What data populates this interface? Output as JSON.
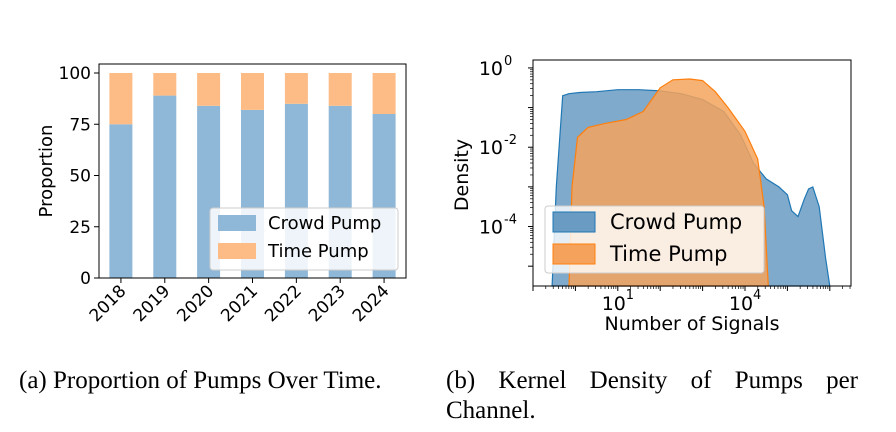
{
  "chart_data": [
    {
      "type": "bar",
      "stacked": true,
      "title": "",
      "xlabel": "",
      "ylabel": "Proportion",
      "categories": [
        "2018",
        "2019",
        "2020",
        "2021",
        "2022",
        "2023",
        "2024"
      ],
      "series": [
        {
          "name": "Crowd Pump",
          "color": "#8fb7d7",
          "values": [
            75,
            89,
            84,
            82,
            85,
            84,
            80
          ]
        },
        {
          "name": "Time Pump",
          "color": "#fdbc85",
          "values": [
            25,
            11,
            16,
            18,
            15,
            16,
            20
          ]
        }
      ],
      "yticks": [
        "0",
        "25",
        "50",
        "75",
        "100"
      ],
      "ylim": [
        0,
        100
      ],
      "legend": {
        "placement": "bottom-right",
        "entries": [
          "Crowd Pump",
          "Time Pump"
        ]
      },
      "caption": "(a) Proportion of Pumps Over Time."
    },
    {
      "type": "area",
      "title": "",
      "xlabel": "Number of Signals",
      "ylabel": "Density",
      "xscale": "log",
      "yscale": "log",
      "xlim_log10": [
        -1.0,
        6.5
      ],
      "ylim_log10": [
        -5.5,
        0.2
      ],
      "xticks": [
        {
          "base": "10",
          "exp": "1",
          "log10": 1
        },
        {
          "base": "10",
          "exp": "4",
          "log10": 4
        }
      ],
      "yticks": [
        {
          "base": "10",
          "exp": "0",
          "log10": 0
        },
        {
          "base": "10",
          "exp": "-2",
          "log10": -2
        },
        {
          "base": "10",
          "exp": "-4",
          "log10": -4
        }
      ],
      "series": [
        {
          "name": "Crowd Pump",
          "fill": "#6a9bc3",
          "stroke": "#1f77b4",
          "points": [
            [
              -0.55,
              -5.5
            ],
            [
              -0.45,
              -3.0
            ],
            [
              -0.3,
              -0.7
            ],
            [
              -0.15,
              -0.65
            ],
            [
              0.1,
              -0.62
            ],
            [
              0.5,
              -0.6
            ],
            [
              1.0,
              -0.55
            ],
            [
              1.5,
              -0.55
            ],
            [
              2.0,
              -0.58
            ],
            [
              2.5,
              -0.65
            ],
            [
              3.0,
              -0.8
            ],
            [
              3.5,
              -1.1
            ],
            [
              3.9,
              -1.7
            ],
            [
              4.2,
              -2.4
            ],
            [
              4.5,
              -2.8
            ],
            [
              4.8,
              -3.0
            ],
            [
              5.0,
              -3.2
            ],
            [
              5.1,
              -3.6
            ],
            [
              5.25,
              -3.75
            ],
            [
              5.4,
              -3.3
            ],
            [
              5.5,
              -3.05
            ],
            [
              5.6,
              -3.0
            ],
            [
              5.75,
              -3.5
            ],
            [
              5.9,
              -4.8
            ],
            [
              6.0,
              -5.5
            ]
          ]
        },
        {
          "name": "Time Pump",
          "fill": "#f5a35c",
          "stroke": "#ff7f0e",
          "points": [
            [
              -0.15,
              -5.5
            ],
            [
              -0.08,
              -3.0
            ],
            [
              0.05,
              -1.75
            ],
            [
              0.3,
              -1.5
            ],
            [
              0.7,
              -1.4
            ],
            [
              1.2,
              -1.3
            ],
            [
              1.6,
              -1.1
            ],
            [
              2.0,
              -0.5
            ],
            [
              2.3,
              -0.3
            ],
            [
              2.7,
              -0.28
            ],
            [
              3.0,
              -0.32
            ],
            [
              3.3,
              -0.6
            ],
            [
              3.6,
              -1.0
            ],
            [
              4.0,
              -1.6
            ],
            [
              4.3,
              -2.3
            ],
            [
              4.45,
              -3.5
            ],
            [
              4.55,
              -5.5
            ]
          ]
        }
      ],
      "legend": {
        "placement": "bottom-left",
        "entries": [
          "Crowd Pump",
          "Time Pump"
        ]
      },
      "caption": "(b) Kernel Density of Pumps per Channel."
    }
  ]
}
